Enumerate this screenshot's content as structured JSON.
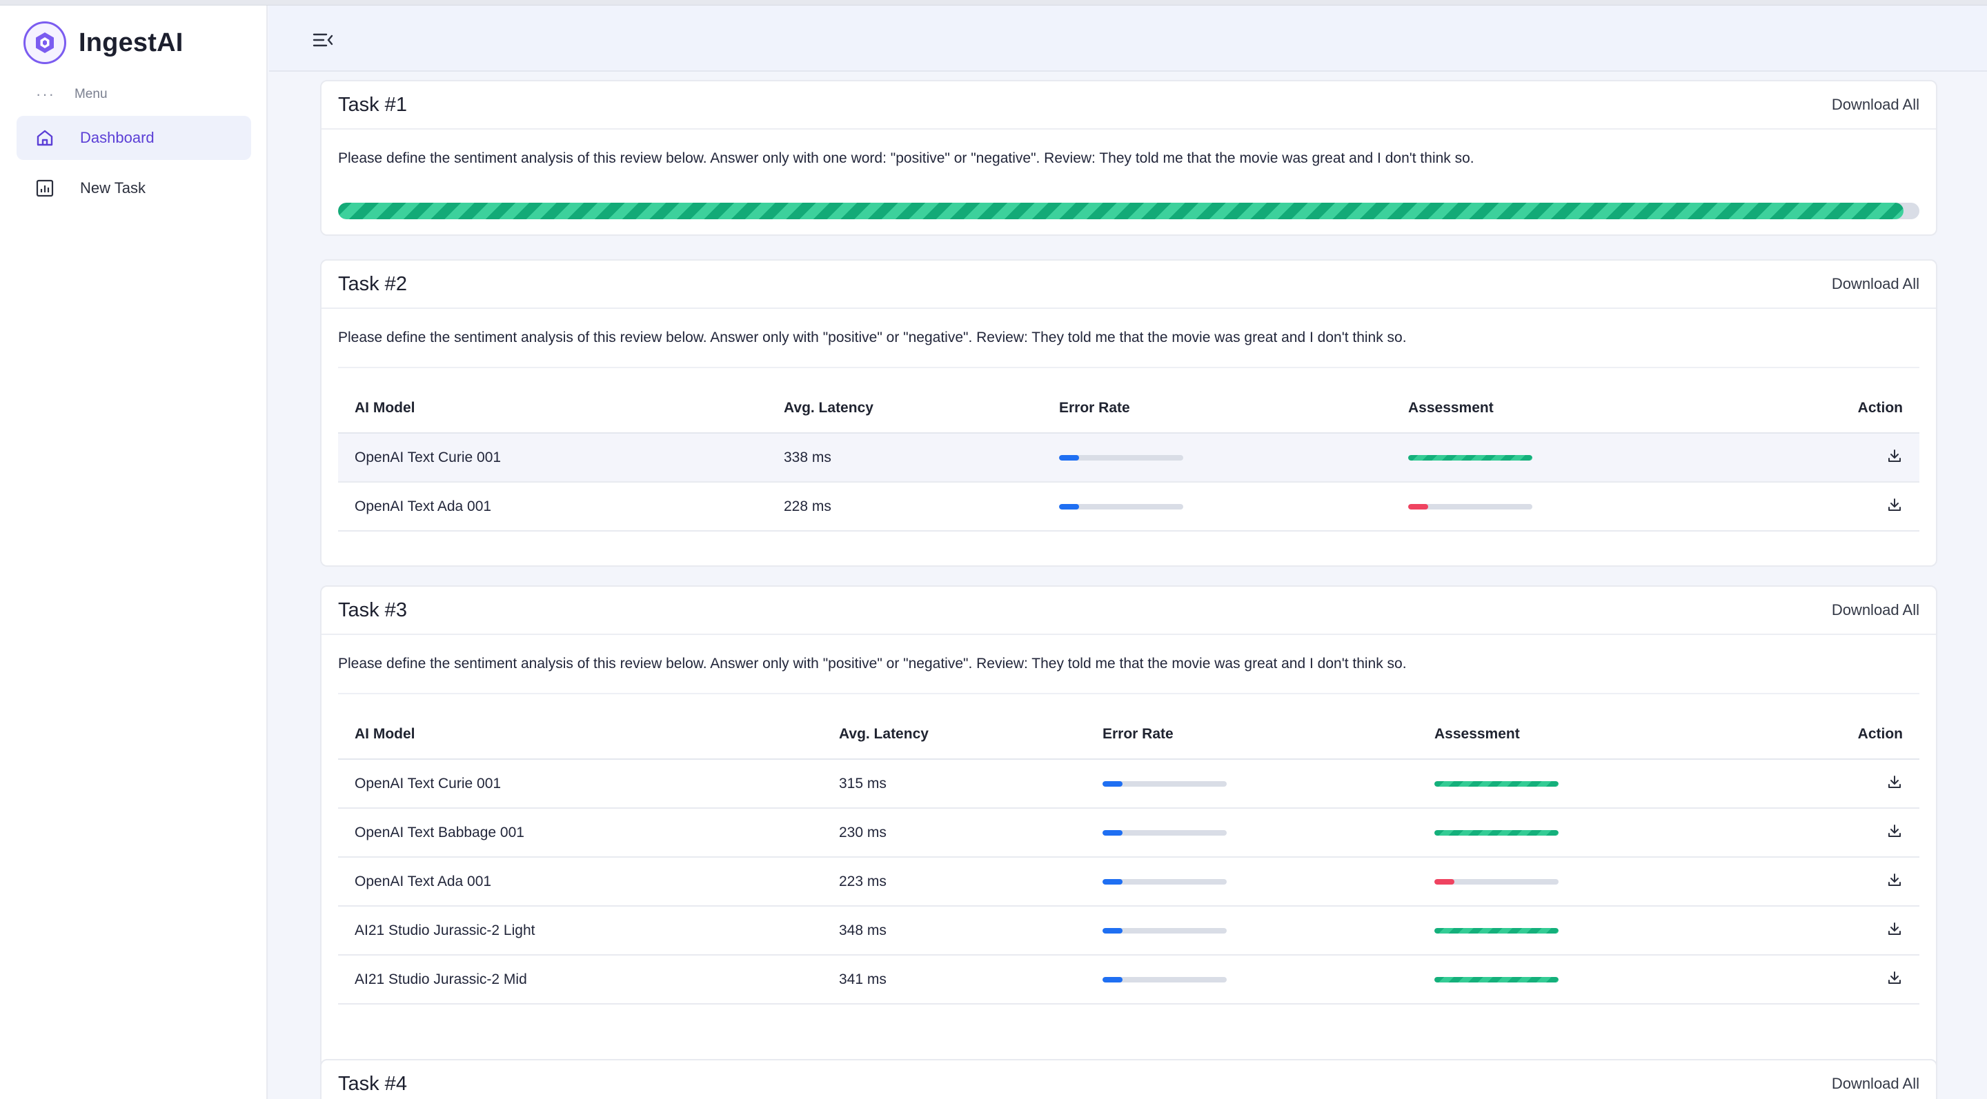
{
  "app": {
    "name": "IngestAI"
  },
  "sidebar": {
    "menu_caption": "Menu",
    "items": [
      {
        "label": "Dashboard",
        "icon": "home-icon",
        "active": true
      },
      {
        "label": "New Task",
        "icon": "chart-icon",
        "active": false
      }
    ]
  },
  "header": {
    "toggle_icon": "menu-collapse-icon"
  },
  "colors": {
    "accent": "#5b3fd6",
    "success": "#14b07b",
    "danger": "#ef4360",
    "info": "#1f6ff2"
  },
  "tasks": [
    {
      "title": "Task #1",
      "action_label": "Download All",
      "prompt": "Please define the sentiment analysis of this review below. Answer only with one word: \"positive\" or \"negative\". Review: They told me that the movie was great and I don't think so.",
      "progress_percent": 99
    },
    {
      "title": "Task #2",
      "action_label": "Download All",
      "prompt": "Please define the sentiment analysis of this review below. Answer only with \"positive\" or \"negative\". Review: They told me that the movie was great and I don't think so.",
      "columns": [
        "AI Model",
        "Avg. Latency",
        "Error Rate",
        "Assessment",
        "Action"
      ],
      "rows": [
        {
          "model": "OpenAI Text Curie 001",
          "latency": "338 ms",
          "error_rate": 16,
          "assessment": 100,
          "assessment_status": "good"
        },
        {
          "model": "OpenAI Text Ada 001",
          "latency": "228 ms",
          "error_rate": 16,
          "assessment": 16,
          "assessment_status": "bad"
        }
      ]
    },
    {
      "title": "Task #3",
      "action_label": "Download All",
      "prompt": "Please define the sentiment analysis of this review below. Answer only with \"positive\" or \"negative\". Review: They told me that the movie was great and I don't think so.",
      "columns": [
        "AI Model",
        "Avg. Latency",
        "Error Rate",
        "Assessment",
        "Action"
      ],
      "rows": [
        {
          "model": "OpenAI Text Curie 001",
          "latency": "315 ms",
          "error_rate": 16,
          "assessment": 100,
          "assessment_status": "good"
        },
        {
          "model": "OpenAI Text Babbage 001",
          "latency": "230 ms",
          "error_rate": 16,
          "assessment": 100,
          "assessment_status": "good"
        },
        {
          "model": "OpenAI Text Ada 001",
          "latency": "223 ms",
          "error_rate": 16,
          "assessment": 16,
          "assessment_status": "bad"
        },
        {
          "model": "AI21 Studio Jurassic-2 Light",
          "latency": "348 ms",
          "error_rate": 16,
          "assessment": 100,
          "assessment_status": "good"
        },
        {
          "model": "AI21 Studio Jurassic-2 Mid",
          "latency": "341 ms",
          "error_rate": 16,
          "assessment": 100,
          "assessment_status": "good"
        }
      ]
    },
    {
      "title": "Task #4",
      "action_label": "Download All"
    }
  ]
}
